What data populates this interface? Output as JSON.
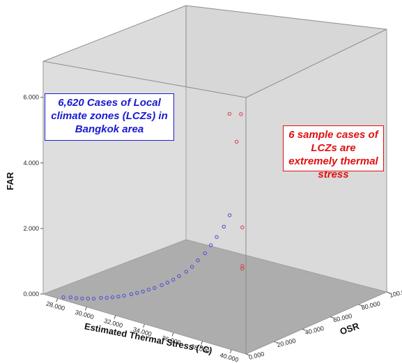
{
  "chart_data": {
    "type": "scatter",
    "projection": "3d",
    "xlabel": "Estimated Thermal Stress (°C)",
    "ylabel": "FAR",
    "zlabel": "OSR",
    "x_ticks": [
      "28.000",
      "30.000",
      "32.000",
      "34.000",
      "36.000",
      "38.000",
      "40.000"
    ],
    "y_ticks": [
      "0.000",
      "2.000",
      "4.000",
      "6.000"
    ],
    "z_ticks": [
      "0.000",
      "20.000",
      "40.000",
      "60.000",
      "80.000",
      "100.000"
    ],
    "xlim": [
      27,
      41
    ],
    "ylim": [
      0,
      7.1
    ],
    "zlim": [
      0,
      100
    ],
    "grid": false,
    "series": [
      {
        "color": "#1e1ed2",
        "marker": "open-circle",
        "count": 6620,
        "points": [
          [
            28.2,
            0.02,
            2
          ],
          [
            28.6,
            0.05,
            3
          ],
          [
            29.0,
            0.08,
            3
          ],
          [
            29.4,
            0.12,
            3
          ],
          [
            29.8,
            0.17,
            3
          ],
          [
            30.2,
            0.22,
            3
          ],
          [
            30.6,
            0.28,
            4
          ],
          [
            31.0,
            0.33,
            4
          ],
          [
            31.4,
            0.4,
            4
          ],
          [
            31.8,
            0.47,
            4
          ],
          [
            32.2,
            0.55,
            4
          ],
          [
            32.6,
            0.63,
            5
          ],
          [
            33.0,
            0.72,
            5
          ],
          [
            33.4,
            0.82,
            5
          ],
          [
            33.8,
            0.93,
            5
          ],
          [
            34.2,
            1.03,
            5
          ],
          [
            34.6,
            1.15,
            6
          ],
          [
            35.0,
            1.28,
            6
          ],
          [
            35.4,
            1.42,
            6
          ],
          [
            35.8,
            1.58,
            6
          ],
          [
            36.2,
            1.75,
            7
          ],
          [
            36.6,
            1.95,
            7
          ],
          [
            37.0,
            2.2,
            7
          ],
          [
            37.4,
            2.45,
            8
          ],
          [
            37.8,
            2.75,
            8
          ],
          [
            38.2,
            3.05,
            8
          ],
          [
            38.6,
            3.4,
            9
          ],
          [
            39.0,
            3.8,
            9
          ]
        ]
      },
      {
        "color": "#d01020",
        "marker": "open-circle",
        "count": 6,
        "points": [
          [
            39.0,
            2.0,
            18
          ],
          [
            39.0,
            2.08,
            18
          ],
          [
            39.0,
            3.26,
            18
          ],
          [
            39.0,
            5.95,
            14
          ],
          [
            38.7,
            6.8,
            12
          ],
          [
            39.3,
            6.83,
            14
          ]
        ]
      }
    ],
    "annotations": [
      {
        "text": "6,620 Cases of Local climate zones (LCZs) in Bangkok area",
        "color": "#1a1ad0"
      },
      {
        "text": "6 sample cases of LCZs are extremely thermal stress",
        "color": "#e01010"
      }
    ]
  }
}
